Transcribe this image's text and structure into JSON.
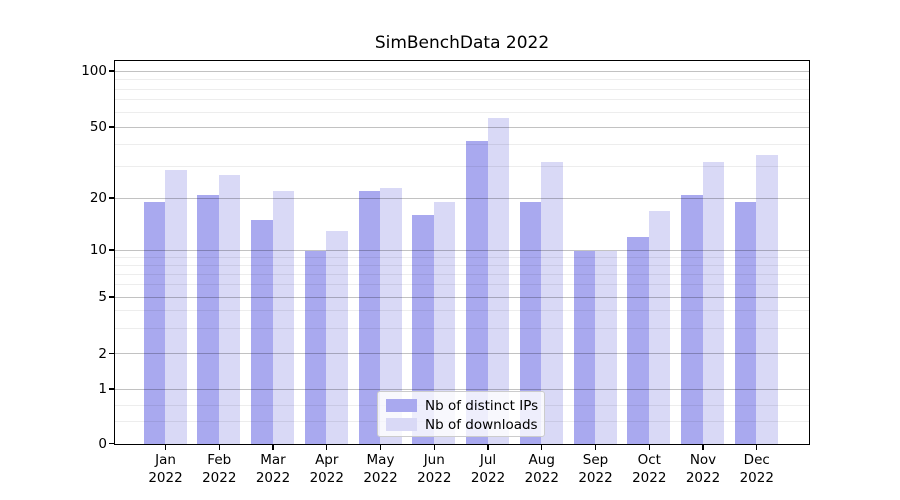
{
  "title": "SimBenchData 2022",
  "chart_data": {
    "type": "bar",
    "title": "SimBenchData 2022",
    "categories": [
      "Jan",
      "Feb",
      "Mar",
      "Apr",
      "May",
      "Jun",
      "Jul",
      "Aug",
      "Sep",
      "Oct",
      "Nov",
      "Dec"
    ],
    "category_year": "2022",
    "series": [
      {
        "name": "Nb of distinct IPs",
        "color": "#a9a9ef",
        "values": [
          19,
          21,
          15,
          10,
          22,
          16,
          42,
          19,
          10,
          12,
          21,
          19
        ]
      },
      {
        "name": "Nb of downloads",
        "color": "#d9d9f6",
        "values": [
          29,
          27,
          22,
          13,
          23,
          19,
          56,
          32,
          10,
          17,
          32,
          35
        ]
      }
    ],
    "xlabel": "",
    "ylabel": "",
    "y_axis": {
      "scale": "symlog",
      "ylim": [
        0,
        112
      ],
      "tick_values": [
        0,
        1,
        2,
        5,
        10,
        20,
        50,
        100
      ],
      "tick_labels": [
        "0",
        "1",
        "2",
        "5",
        "10",
        "20",
        "50",
        "100"
      ],
      "minor_grid_values": [
        0.4,
        0.7,
        3,
        4,
        6,
        7,
        8,
        9,
        30,
        40,
        60,
        70,
        80,
        90
      ],
      "scale_anchors": [
        [
          0,
          0
        ],
        [
          1,
          0.1427
        ],
        [
          2,
          0.2356
        ],
        [
          5,
          0.3835
        ],
        [
          10,
          0.5065
        ],
        [
          20,
          0.6427
        ],
        [
          50,
          0.8285
        ],
        [
          100,
          0.9751
        ]
      ]
    },
    "grid": true,
    "legend_position": "lower center"
  },
  "legend": {
    "items": [
      {
        "label": "Nb of distinct IPs",
        "color": "#a9a9ef"
      },
      {
        "label": "Nb of downloads",
        "color": "#d9d9f6"
      }
    ]
  },
  "colors": {
    "background": "#ffffff",
    "spine": "#000000",
    "grid_major": "rgba(0,0,0,0.24)",
    "grid_minor": "rgba(0,0,0,0.07)"
  }
}
